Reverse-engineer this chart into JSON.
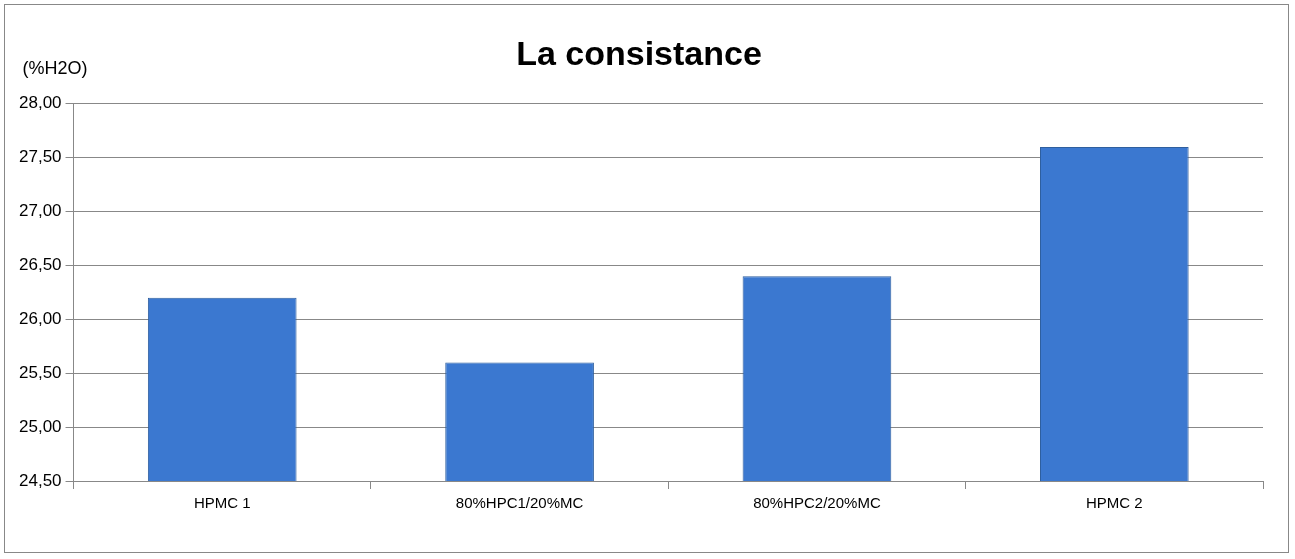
{
  "chart_data": {
    "type": "bar",
    "title": "La consistance",
    "ylabel": "(%H2O)",
    "categories": [
      "HPMC 1",
      "80%HPC1/20%MC",
      "80%HPC2/20%MC",
      "HPMC 2"
    ],
    "values": [
      26.2,
      25.6,
      26.4,
      27.6
    ],
    "color": "#3b78d0",
    "ylim": [
      24.5,
      28
    ],
    "yticks": [
      {
        "value": 24.5,
        "label": "24,50"
      },
      {
        "value": 25,
        "label": "25,00"
      },
      {
        "value": 25.5,
        "label": "25,50"
      },
      {
        "value": 26,
        "label": "26,00"
      },
      {
        "value": 26.5,
        "label": "26,50"
      },
      {
        "value": 27,
        "label": "27,00"
      },
      {
        "value": 27.5,
        "label": "27,50"
      },
      {
        "value": 28,
        "label": "28,00"
      }
    ],
    "grid": "y",
    "legend": false
  }
}
